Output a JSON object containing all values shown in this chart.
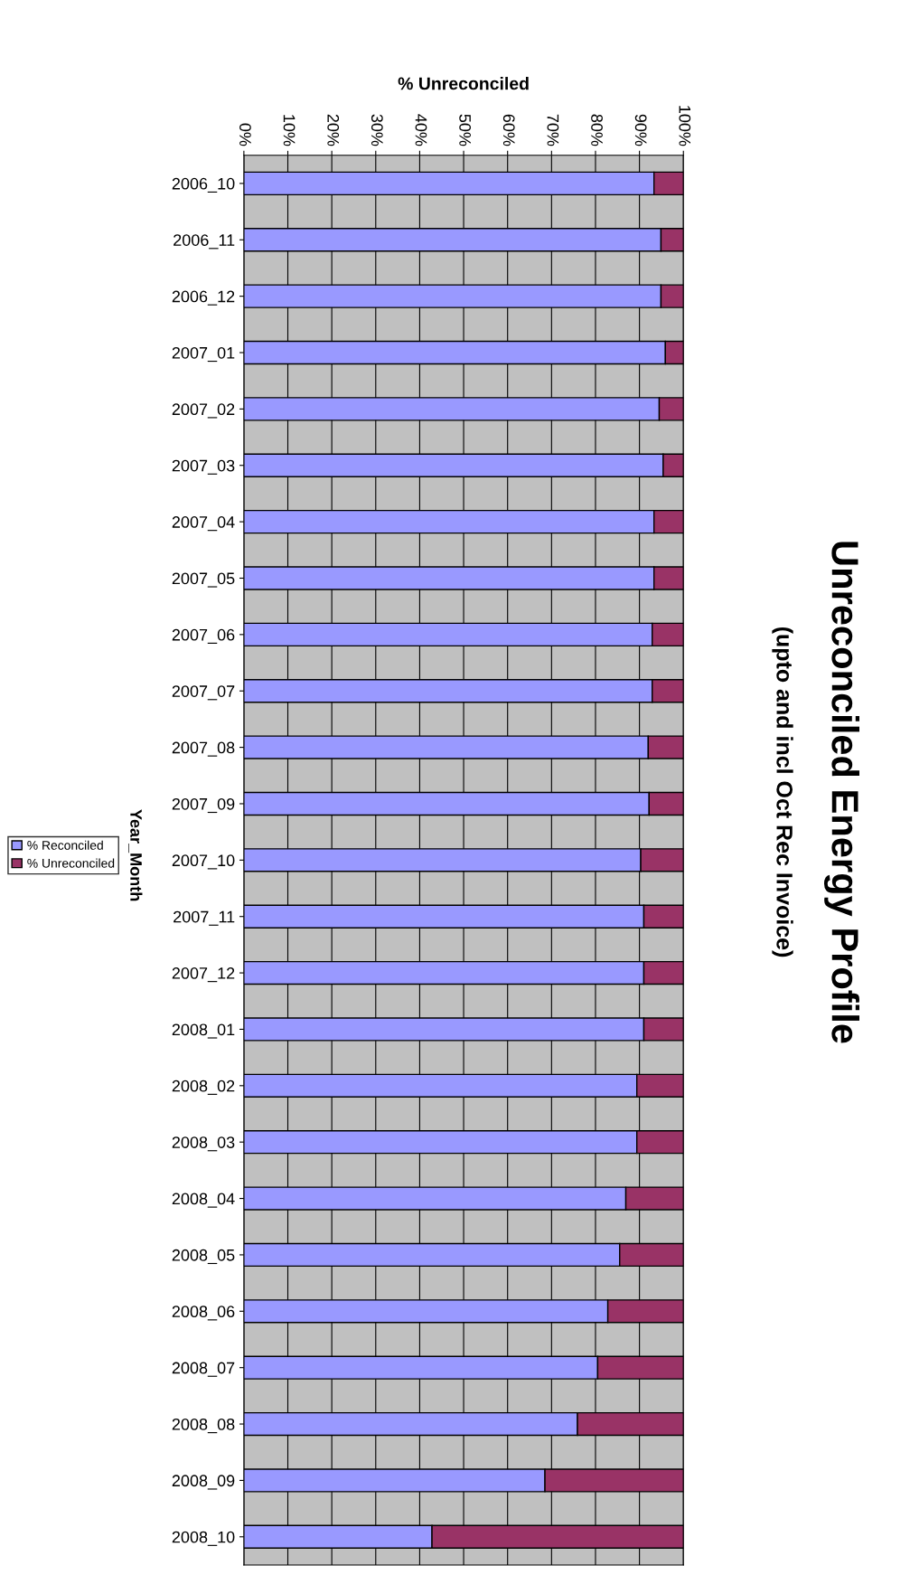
{
  "chart_data": {
    "type": "bar",
    "orientation": "horizontal",
    "stacked": true,
    "title": "Unreconciled Energy Profile",
    "subtitle": "(upto and incl Oct Rec Invoice)",
    "xlabel": "% Unreconciled",
    "ylabel": "Year_Month",
    "categories": [
      "2006_10",
      "2006_11",
      "2006_12",
      "2007_01",
      "2007_02",
      "2007_03",
      "2007_04",
      "2007_05",
      "2007_06",
      "2007_07",
      "2007_08",
      "2007_09",
      "2007_10",
      "2007_11",
      "2007_12",
      "2008_01",
      "2008_02",
      "2008_03",
      "2008_04",
      "2008_05",
      "2008_06",
      "2008_07",
      "2008_08",
      "2008_09",
      "2008_10"
    ],
    "series": [
      {
        "name": "% Reconciled",
        "color": "#9999ff",
        "values": [
          93.3,
          94.9,
          94.9,
          95.9,
          94.5,
          95.4,
          93.3,
          93.3,
          92.9,
          92.9,
          92.0,
          92.2,
          90.3,
          91.0,
          91.0,
          91.0,
          89.4,
          89.4,
          86.9,
          85.5,
          82.8,
          80.5,
          75.9,
          68.5,
          42.8
        ]
      },
      {
        "name": "% Unreconciled",
        "color": "#993366",
        "values": [
          6.7,
          5.1,
          5.1,
          4.1,
          5.5,
          4.6,
          6.7,
          6.7,
          7.1,
          7.1,
          8.0,
          7.8,
          9.7,
          9.0,
          9.0,
          9.0,
          10.6,
          10.6,
          13.1,
          14.5,
          17.2,
          19.5,
          24.1,
          31.5,
          57.2
        ]
      }
    ],
    "xlim": [
      0,
      100
    ],
    "xticks": [
      {
        "value": 0,
        "label": "0%"
      },
      {
        "value": 10,
        "label": "10%"
      },
      {
        "value": 20,
        "label": "20%"
      },
      {
        "value": 30,
        "label": "30%"
      },
      {
        "value": 40,
        "label": "40%"
      },
      {
        "value": 50,
        "label": "50%"
      },
      {
        "value": 60,
        "label": "60%"
      },
      {
        "value": 70,
        "label": "70%"
      },
      {
        "value": 80,
        "label": "80%"
      },
      {
        "value": 90,
        "label": "90%"
      },
      {
        "value": 100,
        "label": "100%"
      }
    ],
    "grid": "x",
    "legend": "left"
  }
}
